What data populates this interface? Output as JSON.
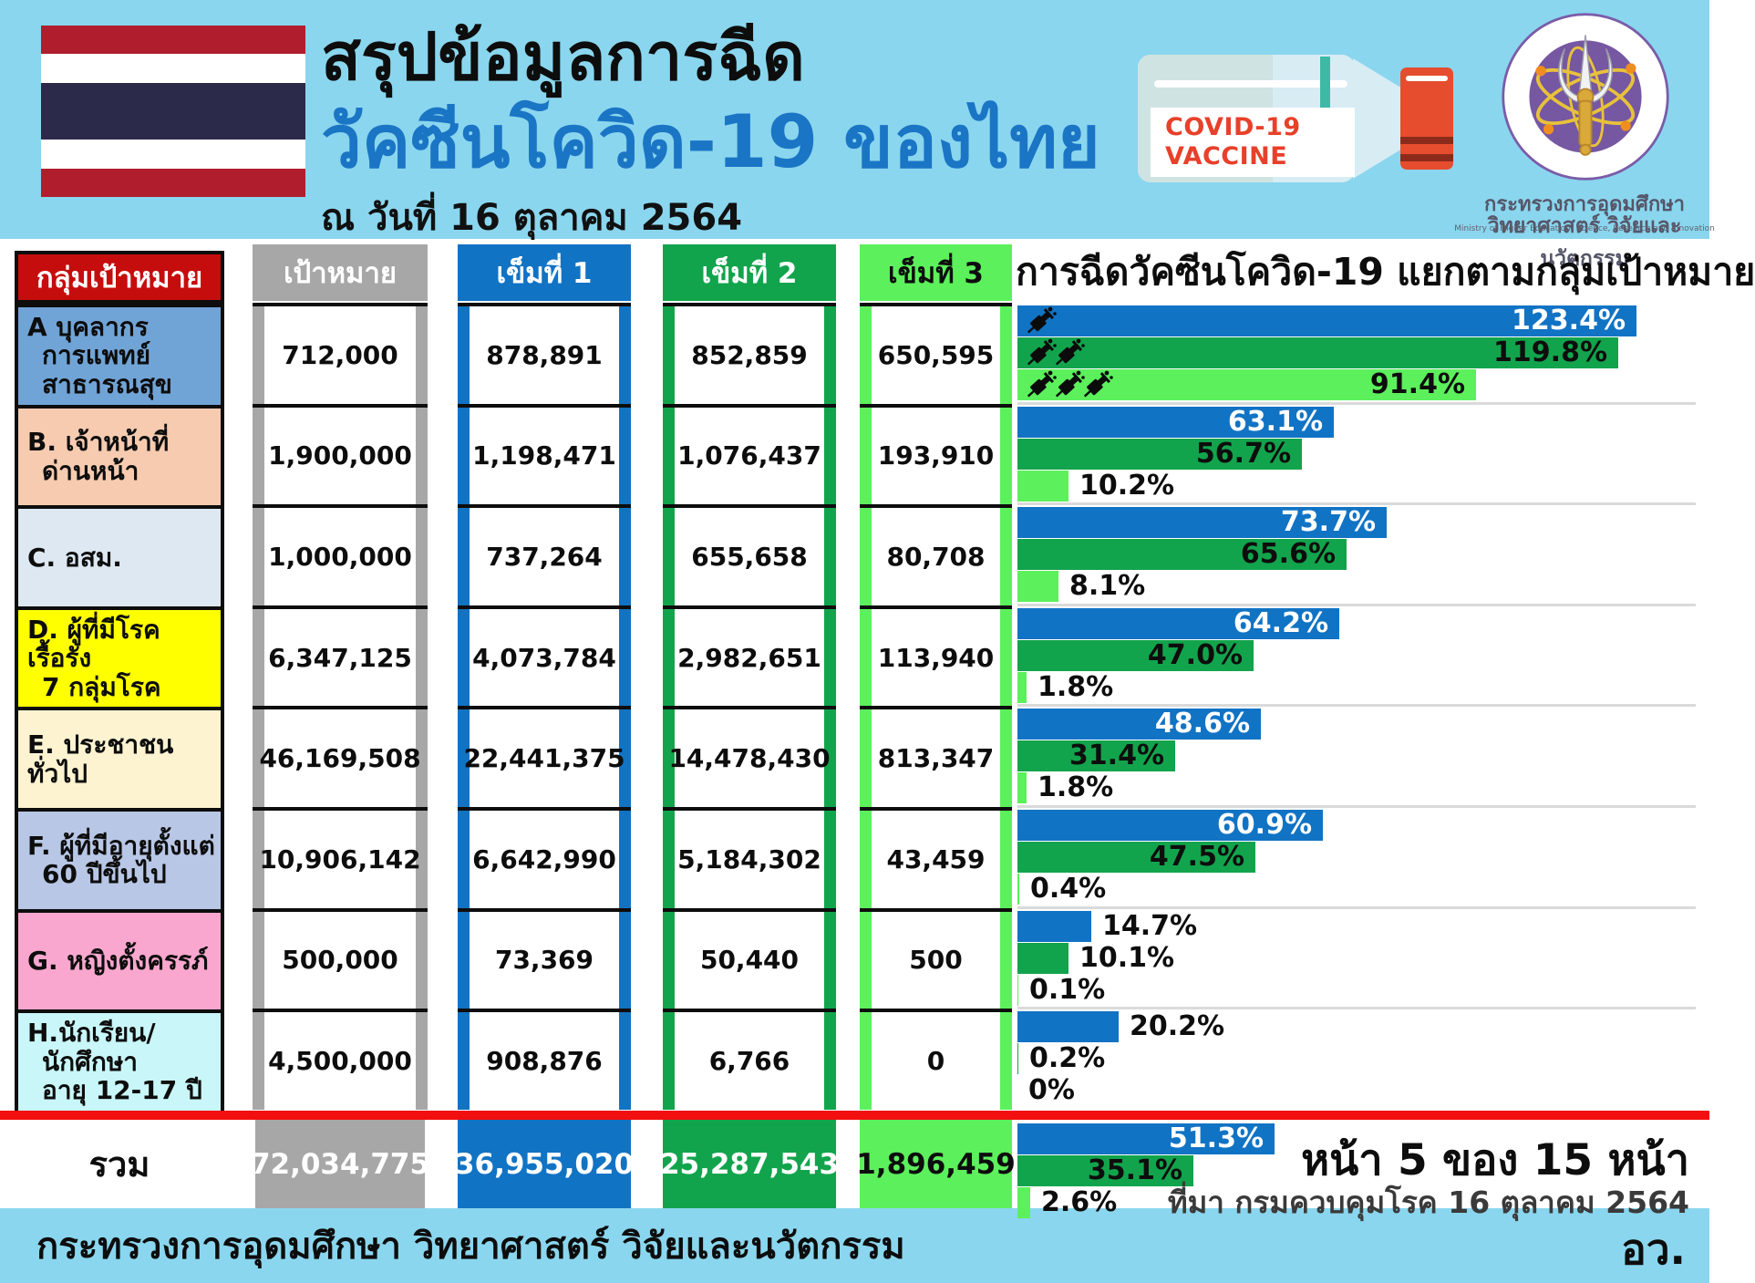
{
  "colors": {
    "sky": "#8ad6ee",
    "gray": "#a7a7a7",
    "blue": "#1173c4",
    "green": "#12a44c",
    "light_green": "#5cf05c",
    "red_header": "#c60d0d",
    "red_line": "#f10f0f",
    "title_blue": "#1b75c5",
    "flag_red": "#b01e2e",
    "flag_navy": "#2c2a4a",
    "bottle_red": "#e64d2e",
    "logo_purple": "#7657a2"
  },
  "header": {
    "title_line1": "สรุปข้อมูลการฉีด",
    "title_line2": "วัคซีนโควิด-19 ของไทย",
    "date_line": "ณ วันที่ 16 ตุลาคม 2564",
    "bottle_label_line1": "COVID-19",
    "bottle_label_line2": "VACCINE",
    "ministry_name_line1": "กระทรวงการอุดมศึกษา",
    "ministry_name_line2": "วิทยาศาสตร์ วิจัยและนวัตกรรม",
    "ministry_name_en": "Ministry of Higher Education, Science, Research and Innovation"
  },
  "table": {
    "headers": [
      "กลุ่มเป้าหมาย",
      "เป้าหมาย",
      "เข็มที่ 1",
      "เข็มที่ 2",
      "เข็มที่ 3"
    ]
  },
  "chart": {
    "title": "การฉีดวัคซีนโควิด-19 แยกตามกลุ่มเป้าหมาย"
  },
  "groups": [
    {
      "id": "A",
      "label_lines": [
        "A บุคลากร",
        "การแพทย์",
        "สาธารณสุข"
      ],
      "row_color": "#71a4d6",
      "target": "712,000",
      "dose1": "878,891",
      "dose2": "852,859",
      "dose3": "650,595",
      "pct1": 123.4,
      "pct1_label": "123.4%",
      "pct2": 119.8,
      "pct2_label": "119.8%",
      "pct3": 91.4,
      "pct3_label": "91.4%"
    },
    {
      "id": "B",
      "label_lines": [
        "B. เจ้าหน้าที่",
        "ด่านหน้า"
      ],
      "row_color": "#f6cbb0",
      "target": "1,900,000",
      "dose1": "1,198,471",
      "dose2": "1,076,437",
      "dose3": "193,910",
      "pct1": 63.1,
      "pct1_label": "63.1%",
      "pct2": 56.7,
      "pct2_label": "56.7%",
      "pct3": 10.2,
      "pct3_label": "10.2%"
    },
    {
      "id": "C",
      "label_lines": [
        "C. อสม."
      ],
      "row_color": "#dde8f2",
      "target": "1,000,000",
      "dose1": "737,264",
      "dose2": "655,658",
      "dose3": "80,708",
      "pct1": 73.7,
      "pct1_label": "73.7%",
      "pct2": 65.6,
      "pct2_label": "65.6%",
      "pct3": 8.1,
      "pct3_label": "8.1%"
    },
    {
      "id": "D",
      "label_lines": [
        "D. ผู้ที่มีโรคเรื้อรัง",
        "7 กลุ่มโรค"
      ],
      "row_color": "#ffff00",
      "target": "6,347,125",
      "dose1": "4,073,784",
      "dose2": "2,982,651",
      "dose3": "113,940",
      "pct1": 64.2,
      "pct1_label": "64.2%",
      "pct2": 47.0,
      "pct2_label": "47.0%",
      "pct3": 1.8,
      "pct3_label": "1.8%"
    },
    {
      "id": "E",
      "label_lines": [
        "E. ประชาชนทั่วไป"
      ],
      "row_color": "#fdf3d0",
      "target": "46,169,508",
      "dose1": "22,441,375",
      "dose2": "14,478,430",
      "dose3": "813,347",
      "pct1": 48.6,
      "pct1_label": "48.6%",
      "pct2": 31.4,
      "pct2_label": "31.4%",
      "pct3": 1.8,
      "pct3_label": "1.8%"
    },
    {
      "id": "F",
      "label_lines": [
        "F. ผู้ที่มีอายุตั้งแต่",
        "60 ปีขึ้นไป"
      ],
      "row_color": "#b9c7e6",
      "target": "10,906,142",
      "dose1": "6,642,990",
      "dose2": "5,184,302",
      "dose3": "43,459",
      "pct1": 60.9,
      "pct1_label": "60.9%",
      "pct2": 47.5,
      "pct2_label": "47.5%",
      "pct3": 0.4,
      "pct3_label": "0.4%"
    },
    {
      "id": "G",
      "label_lines": [
        "G. หญิงตั้งครรภ์"
      ],
      "row_color": "#f9a7ce",
      "target": "500,000",
      "dose1": "73,369",
      "dose2": "50,440",
      "dose3": "500",
      "pct1": 14.7,
      "pct1_label": "14.7%",
      "pct2": 10.1,
      "pct2_label": "10.1%",
      "pct3": 0.1,
      "pct3_label": "0.1%"
    },
    {
      "id": "H",
      "label_lines": [
        "H.นักเรียน/",
        "นักศึกษา",
        "อายุ 12-17 ปี"
      ],
      "row_color": "#c9f6f8",
      "target": "4,500,000",
      "dose1": "908,876",
      "dose2": "6,766",
      "dose3": "0",
      "pct1": 20.2,
      "pct1_label": "20.2%",
      "pct2": 0.2,
      "pct2_label": "0.2%",
      "pct3": 0,
      "pct3_label": "0%"
    }
  ],
  "totals": {
    "label": "รวม",
    "target": "72,034,775",
    "dose1": "36,955,020",
    "dose2": "25,287,543",
    "dose3": "1,896,459",
    "pct1": 51.3,
    "pct1_label": "51.3%",
    "pct2": 35.1,
    "pct2_label": "35.1%",
    "pct3": 2.6,
    "pct3_label": "2.6%"
  },
  "footnotes": {
    "page": "หน้า 5 ของ 15 หน้า",
    "source": "ที่มา กรมควบคุมโรค 16 ตุลาคม 2564"
  },
  "footer": {
    "ministry": "กระทรวงการอุดมศึกษา วิทยาศาสตร์ วิจัยและนวัตกรรม",
    "abbr": "อว."
  },
  "chart_data": {
    "type": "bar",
    "orientation": "horizontal",
    "title": "การฉีดวัคซีนโควิด-19 แยกตามกลุ่มเป้าหมาย",
    "unit": "% of target population",
    "xlim": [
      0,
      135
    ],
    "grid": false,
    "value_labels": true,
    "categories": [
      "A บุคลากรการแพทย์สาธารณสุข",
      "B. เจ้าหน้าที่ด่านหน้า",
      "C. อสม.",
      "D. ผู้ที่มีโรคเรื้อรัง 7 กลุ่มโรค",
      "E. ประชาชนทั่วไป",
      "F. ผู้ที่มีอายุตั้งแต่ 60 ปีขึ้นไป",
      "G. หญิงตั้งครรภ์",
      "H.นักเรียน/นักศึกษา อายุ 12-17 ปี",
      "รวม"
    ],
    "series": [
      {
        "name": "เข็มที่ 1",
        "color": "#1173c4",
        "values": [
          123.4,
          63.1,
          73.7,
          64.2,
          48.6,
          60.9,
          14.7,
          20.2,
          51.3
        ]
      },
      {
        "name": "เข็มที่ 2",
        "color": "#12a44c",
        "values": [
          119.8,
          56.7,
          65.6,
          47.0,
          31.4,
          47.5,
          10.1,
          0.2,
          35.1
        ]
      },
      {
        "name": "เข็มที่ 3",
        "color": "#5cf05c",
        "values": [
          91.4,
          10.2,
          8.1,
          1.8,
          1.8,
          0.4,
          0.1,
          0,
          2.6
        ]
      }
    ],
    "targets": [
      712000,
      1900000,
      1000000,
      6347125,
      46169508,
      10906142,
      500000,
      4500000,
      72034775
    ],
    "dose1_counts": [
      878891,
      1198471,
      737264,
      4073784,
      22441375,
      6642990,
      73369,
      908876,
      36955020
    ],
    "dose2_counts": [
      852859,
      1076437,
      655658,
      2982651,
      14478430,
      5184302,
      50440,
      6766,
      25287543
    ],
    "dose3_counts": [
      650595,
      193910,
      80708,
      113940,
      813347,
      43459,
      500,
      0,
      1896459
    ]
  }
}
